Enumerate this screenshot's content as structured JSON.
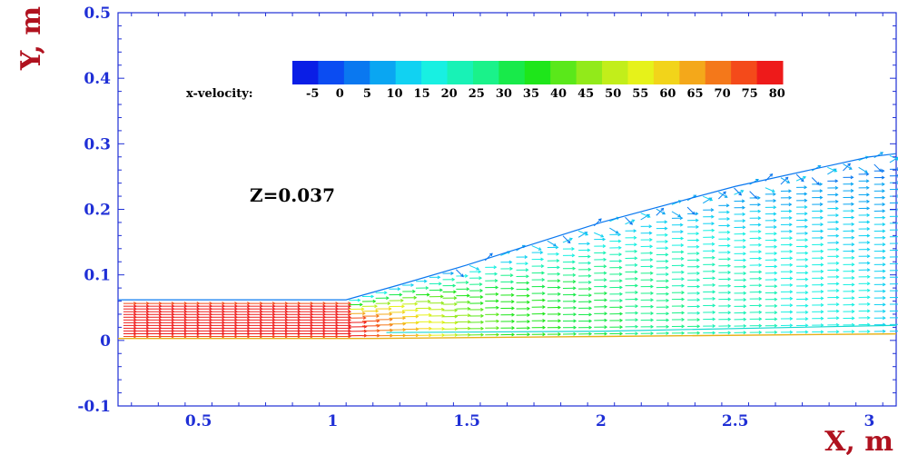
{
  "chart_data": {
    "type": "vector-field",
    "xlabel": "X, m",
    "ylabel": "Y, m",
    "xlim": [
      0.2,
      3.1
    ],
    "ylim": [
      -0.1,
      0.5
    ],
    "xticks": [
      0.5,
      1,
      1.5,
      2,
      2.5,
      3
    ],
    "xtick_labels": [
      "0.5",
      "1",
      "1.5",
      "2",
      "2.5",
      "3"
    ],
    "yticks": [
      -0.1,
      0,
      0.1,
      0.2,
      0.3,
      0.4,
      0.5
    ],
    "ytick_labels": [
      "-0.1",
      "0",
      "0.1",
      "0.2",
      "0.3",
      "0.4",
      "0.5"
    ],
    "annotation": "Z=0.037",
    "colorbar": {
      "label": "x-velocity:",
      "ticks": [
        "-5",
        "0",
        "5",
        "10",
        "15",
        "20",
        "25",
        "30",
        "35",
        "40",
        "45",
        "50",
        "55",
        "60",
        "65",
        "70",
        "75",
        "80"
      ],
      "colors": [
        "#0a1ee6",
        "#0b4cf2",
        "#0a78f0",
        "#0aa6f2",
        "#11d2f2",
        "#18f0e2",
        "#18f2b6",
        "#1af28a",
        "#18ea4a",
        "#1ee61a",
        "#5ae81a",
        "#92ea1a",
        "#c2ee1a",
        "#e6f21a",
        "#f2d41a",
        "#f4a81a",
        "#f4781a",
        "#f44a1a",
        "#ee1a1a"
      ],
      "range": [
        -5,
        80
      ]
    },
    "lower_wall": [
      [
        0.2,
        0.003
      ],
      [
        1.15,
        0.003
      ],
      [
        2.0,
        0.006
      ],
      [
        3.1,
        0.01
      ]
    ],
    "upper_boundary": [
      [
        0.2,
        0.062
      ],
      [
        1.05,
        0.062
      ],
      [
        1.25,
        0.085
      ],
      [
        1.5,
        0.115
      ],
      [
        2.0,
        0.18
      ],
      [
        2.5,
        0.235
      ],
      [
        3.0,
        0.28
      ],
      [
        3.1,
        0.285
      ]
    ],
    "field_description": "x-velocity vectors; ~80 in inlet channel (x<1.05), decaying through ~55-60 near x=1.2-1.4, ~35-45 at x=1.5-2 and ~15-25 at x=2.5-3.1; near-zero recirculating flow along upper jet edge"
  }
}
